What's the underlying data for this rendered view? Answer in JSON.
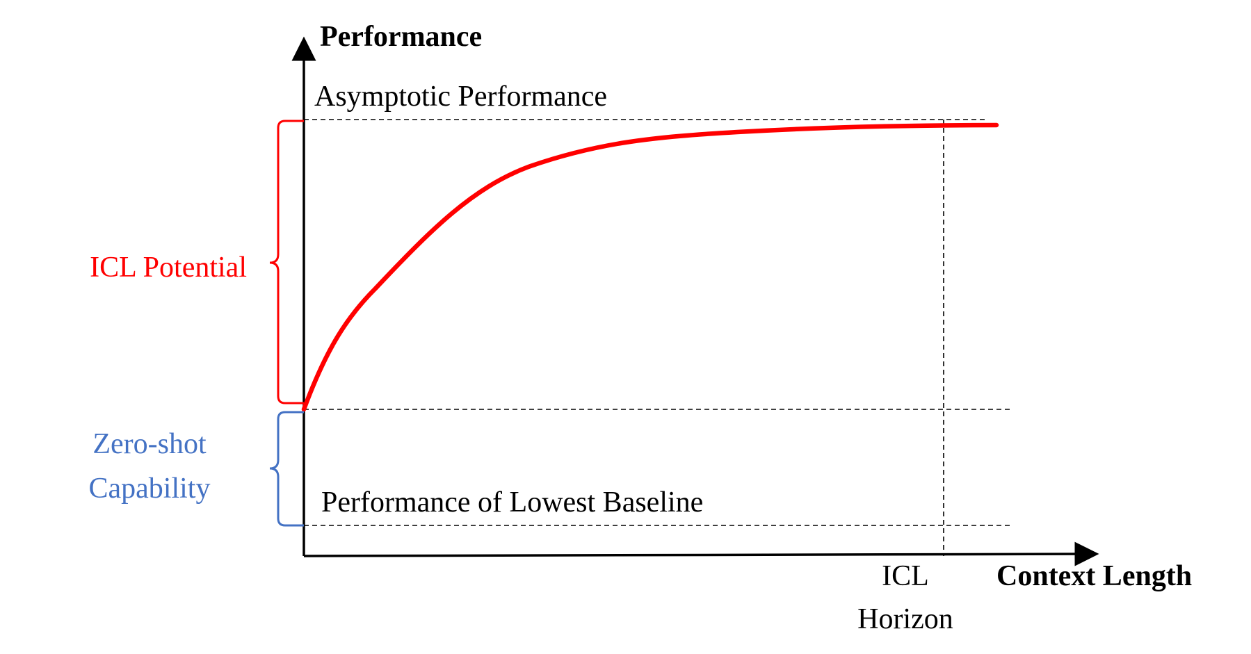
{
  "axes": {
    "y_label": "Performance",
    "x_label": "Context Length"
  },
  "reference_lines": {
    "asymptotic": "Asymptotic Performance",
    "lowest_baseline": "Performance of Lowest Baseline"
  },
  "horizon": {
    "line1": "ICL",
    "line2": "Horizon"
  },
  "braces": {
    "icl_potential": "ICL Potential",
    "zero_shot_line1": "Zero-shot",
    "zero_shot_line2": "Capability"
  },
  "colors": {
    "curve": "#ff0000",
    "icl_potential": "#ff0000",
    "zero_shot": "#4472c4",
    "axes": "#000000",
    "dashed": "#000000"
  }
}
